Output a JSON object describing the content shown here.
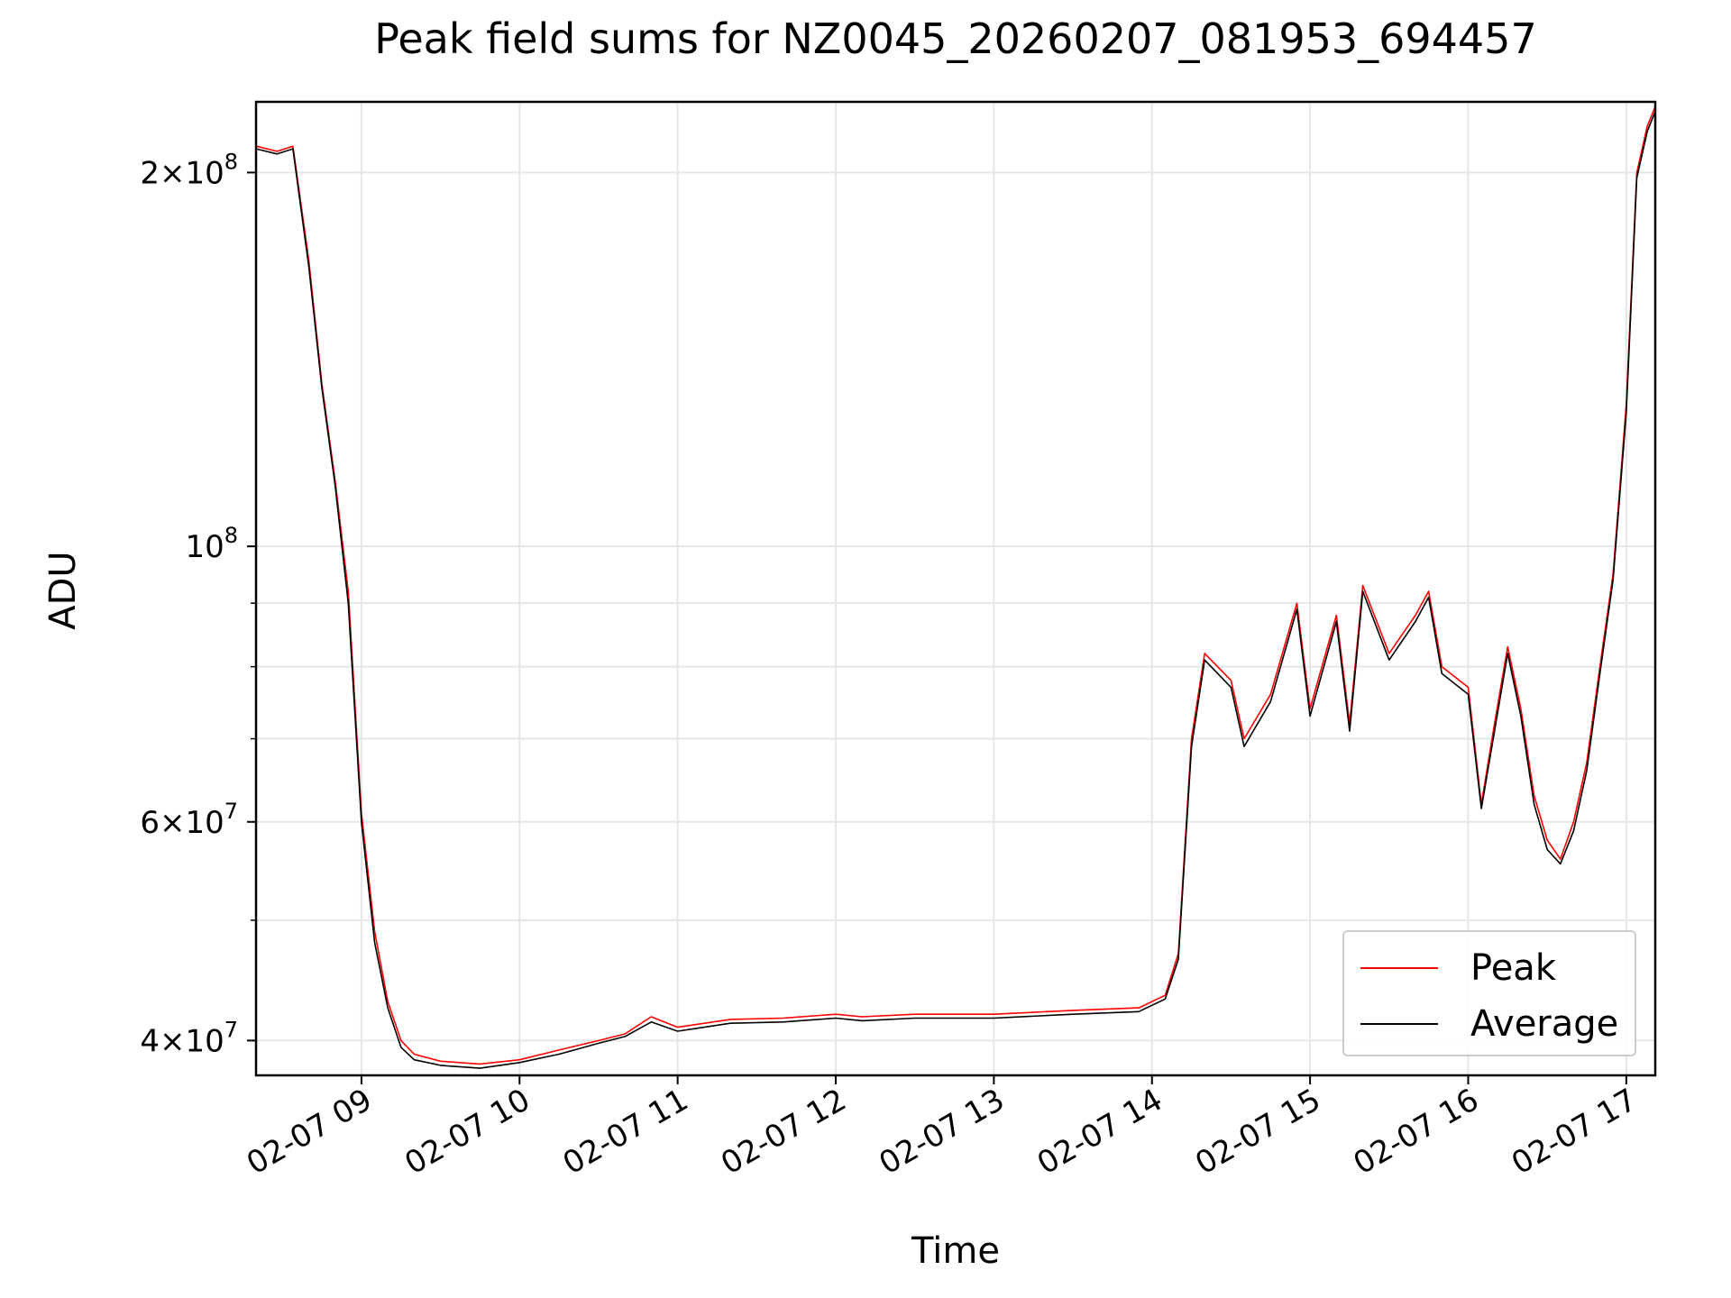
{
  "chart_data": {
    "type": "line",
    "title": "Peak field sums for NZ0045_20260207_081953_694457",
    "xlabel": "Time",
    "ylabel": "ADU",
    "y_scale": "log",
    "ylim": [
      37500000,
      228000000
    ],
    "xlim": [
      "02-07 08:20",
      "02-07 17:11"
    ],
    "x_ticks": [
      "02-07 09",
      "02-07 10",
      "02-07 11",
      "02-07 12",
      "02-07 13",
      "02-07 14",
      "02-07 15",
      "02-07 16",
      "02-07 17"
    ],
    "y_tick_labels": [
      {
        "value": 200000000,
        "mantissa": "2",
        "exponent": "8"
      },
      {
        "value": 100000000,
        "mantissa": "",
        "exponent": "8"
      },
      {
        "value": 60000000,
        "mantissa": "6",
        "exponent": "7"
      },
      {
        "value": 40000000,
        "mantissa": "4",
        "exponent": "7"
      }
    ],
    "grid": true,
    "legend": "lower-right",
    "series": [
      {
        "name": "Peak",
        "color": "#ff0000",
        "points": [
          [
            "02-07 08:20",
            210000000
          ],
          [
            "02-07 08:28",
            208000000
          ],
          [
            "02-07 08:34",
            210000000
          ],
          [
            "02-07 08:40",
            170000000
          ],
          [
            "02-07 08:45",
            135000000
          ],
          [
            "02-07 08:50",
            113000000
          ],
          [
            "02-07 08:55",
            92000000
          ],
          [
            "02-07 09:00",
            61000000
          ],
          [
            "02-07 09:05",
            49000000
          ],
          [
            "02-07 09:10",
            43000000
          ],
          [
            "02-07 09:15",
            40000000
          ],
          [
            "02-07 09:20",
            39000000
          ],
          [
            "02-07 09:30",
            38500000
          ],
          [
            "02-07 09:45",
            38300000
          ],
          [
            "02-07 10:00",
            38600000
          ],
          [
            "02-07 10:15",
            39300000
          ],
          [
            "02-07 10:30",
            40000000
          ],
          [
            "02-07 10:40",
            40500000
          ],
          [
            "02-07 10:50",
            41800000
          ],
          [
            "02-07 11:00",
            41000000
          ],
          [
            "02-07 11:20",
            41600000
          ],
          [
            "02-07 11:40",
            41700000
          ],
          [
            "02-07 12:00",
            42000000
          ],
          [
            "02-07 12:10",
            41800000
          ],
          [
            "02-07 12:30",
            42000000
          ],
          [
            "02-07 13:00",
            42000000
          ],
          [
            "02-07 13:30",
            42300000
          ],
          [
            "02-07 13:55",
            42500000
          ],
          [
            "02-07 14:05",
            43500000
          ],
          [
            "02-07 14:10",
            47000000
          ],
          [
            "02-07 14:15",
            70000000
          ],
          [
            "02-07 14:20",
            82000000
          ],
          [
            "02-07 14:30",
            78000000
          ],
          [
            "02-07 14:35",
            70000000
          ],
          [
            "02-07 14:45",
            76000000
          ],
          [
            "02-07 14:55",
            90000000
          ],
          [
            "02-07 15:00",
            74000000
          ],
          [
            "02-07 15:10",
            88000000
          ],
          [
            "02-07 15:15",
            72000000
          ],
          [
            "02-07 15:20",
            93000000
          ],
          [
            "02-07 15:30",
            82000000
          ],
          [
            "02-07 15:40",
            88000000
          ],
          [
            "02-07 15:45",
            92000000
          ],
          [
            "02-07 15:50",
            80000000
          ],
          [
            "02-07 16:00",
            77000000
          ],
          [
            "02-07 16:05",
            62000000
          ],
          [
            "02-07 16:10",
            72000000
          ],
          [
            "02-07 16:15",
            83000000
          ],
          [
            "02-07 16:20",
            74000000
          ],
          [
            "02-07 16:25",
            63000000
          ],
          [
            "02-07 16:30",
            58000000
          ],
          [
            "02-07 16:35",
            56000000
          ],
          [
            "02-07 16:40",
            60000000
          ],
          [
            "02-07 16:45",
            67000000
          ],
          [
            "02-07 16:50",
            80000000
          ],
          [
            "02-07 16:55",
            95000000
          ],
          [
            "02-07 17:00",
            130000000
          ],
          [
            "02-07 17:04",
            200000000
          ],
          [
            "02-07 17:08",
            218000000
          ],
          [
            "02-07 17:11",
            226000000
          ]
        ]
      },
      {
        "name": "Average",
        "color": "#000000",
        "points": [
          [
            "02-07 08:20",
            209000000
          ],
          [
            "02-07 08:28",
            207000000
          ],
          [
            "02-07 08:34",
            209000000
          ],
          [
            "02-07 08:40",
            168000000
          ],
          [
            "02-07 08:45",
            134000000
          ],
          [
            "02-07 08:50",
            112000000
          ],
          [
            "02-07 08:55",
            90000000
          ],
          [
            "02-07 09:00",
            60000000
          ],
          [
            "02-07 09:05",
            48000000
          ],
          [
            "02-07 09:10",
            42500000
          ],
          [
            "02-07 09:15",
            39500000
          ],
          [
            "02-07 09:20",
            38600000
          ],
          [
            "02-07 09:30",
            38200000
          ],
          [
            "02-07 09:45",
            38000000
          ],
          [
            "02-07 10:00",
            38400000
          ],
          [
            "02-07 10:15",
            39000000
          ],
          [
            "02-07 10:30",
            39800000
          ],
          [
            "02-07 10:40",
            40300000
          ],
          [
            "02-07 10:50",
            41400000
          ],
          [
            "02-07 11:00",
            40700000
          ],
          [
            "02-07 11:20",
            41300000
          ],
          [
            "02-07 11:40",
            41400000
          ],
          [
            "02-07 12:00",
            41700000
          ],
          [
            "02-07 12:10",
            41500000
          ],
          [
            "02-07 12:30",
            41700000
          ],
          [
            "02-07 13:00",
            41700000
          ],
          [
            "02-07 13:30",
            42000000
          ],
          [
            "02-07 13:55",
            42200000
          ],
          [
            "02-07 14:05",
            43200000
          ],
          [
            "02-07 14:10",
            46500000
          ],
          [
            "02-07 14:15",
            69000000
          ],
          [
            "02-07 14:20",
            81000000
          ],
          [
            "02-07 14:30",
            77000000
          ],
          [
            "02-07 14:35",
            69000000
          ],
          [
            "02-07 14:45",
            75000000
          ],
          [
            "02-07 14:55",
            89000000
          ],
          [
            "02-07 15:00",
            73000000
          ],
          [
            "02-07 15:10",
            87000000
          ],
          [
            "02-07 15:15",
            71000000
          ],
          [
            "02-07 15:20",
            92000000
          ],
          [
            "02-07 15:30",
            81000000
          ],
          [
            "02-07 15:40",
            87000000
          ],
          [
            "02-07 15:45",
            91000000
          ],
          [
            "02-07 15:50",
            79000000
          ],
          [
            "02-07 16:00",
            76000000
          ],
          [
            "02-07 16:05",
            61500000
          ],
          [
            "02-07 16:10",
            71000000
          ],
          [
            "02-07 16:15",
            82000000
          ],
          [
            "02-07 16:20",
            73000000
          ],
          [
            "02-07 16:25",
            62000000
          ],
          [
            "02-07 16:30",
            57000000
          ],
          [
            "02-07 16:35",
            55500000
          ],
          [
            "02-07 16:40",
            59000000
          ],
          [
            "02-07 16:45",
            66000000
          ],
          [
            "02-07 16:50",
            79000000
          ],
          [
            "02-07 16:55",
            94000000
          ],
          [
            "02-07 17:00",
            128000000
          ],
          [
            "02-07 17:04",
            198000000
          ],
          [
            "02-07 17:08",
            216000000
          ],
          [
            "02-07 17:11",
            224000000
          ]
        ]
      }
    ]
  }
}
